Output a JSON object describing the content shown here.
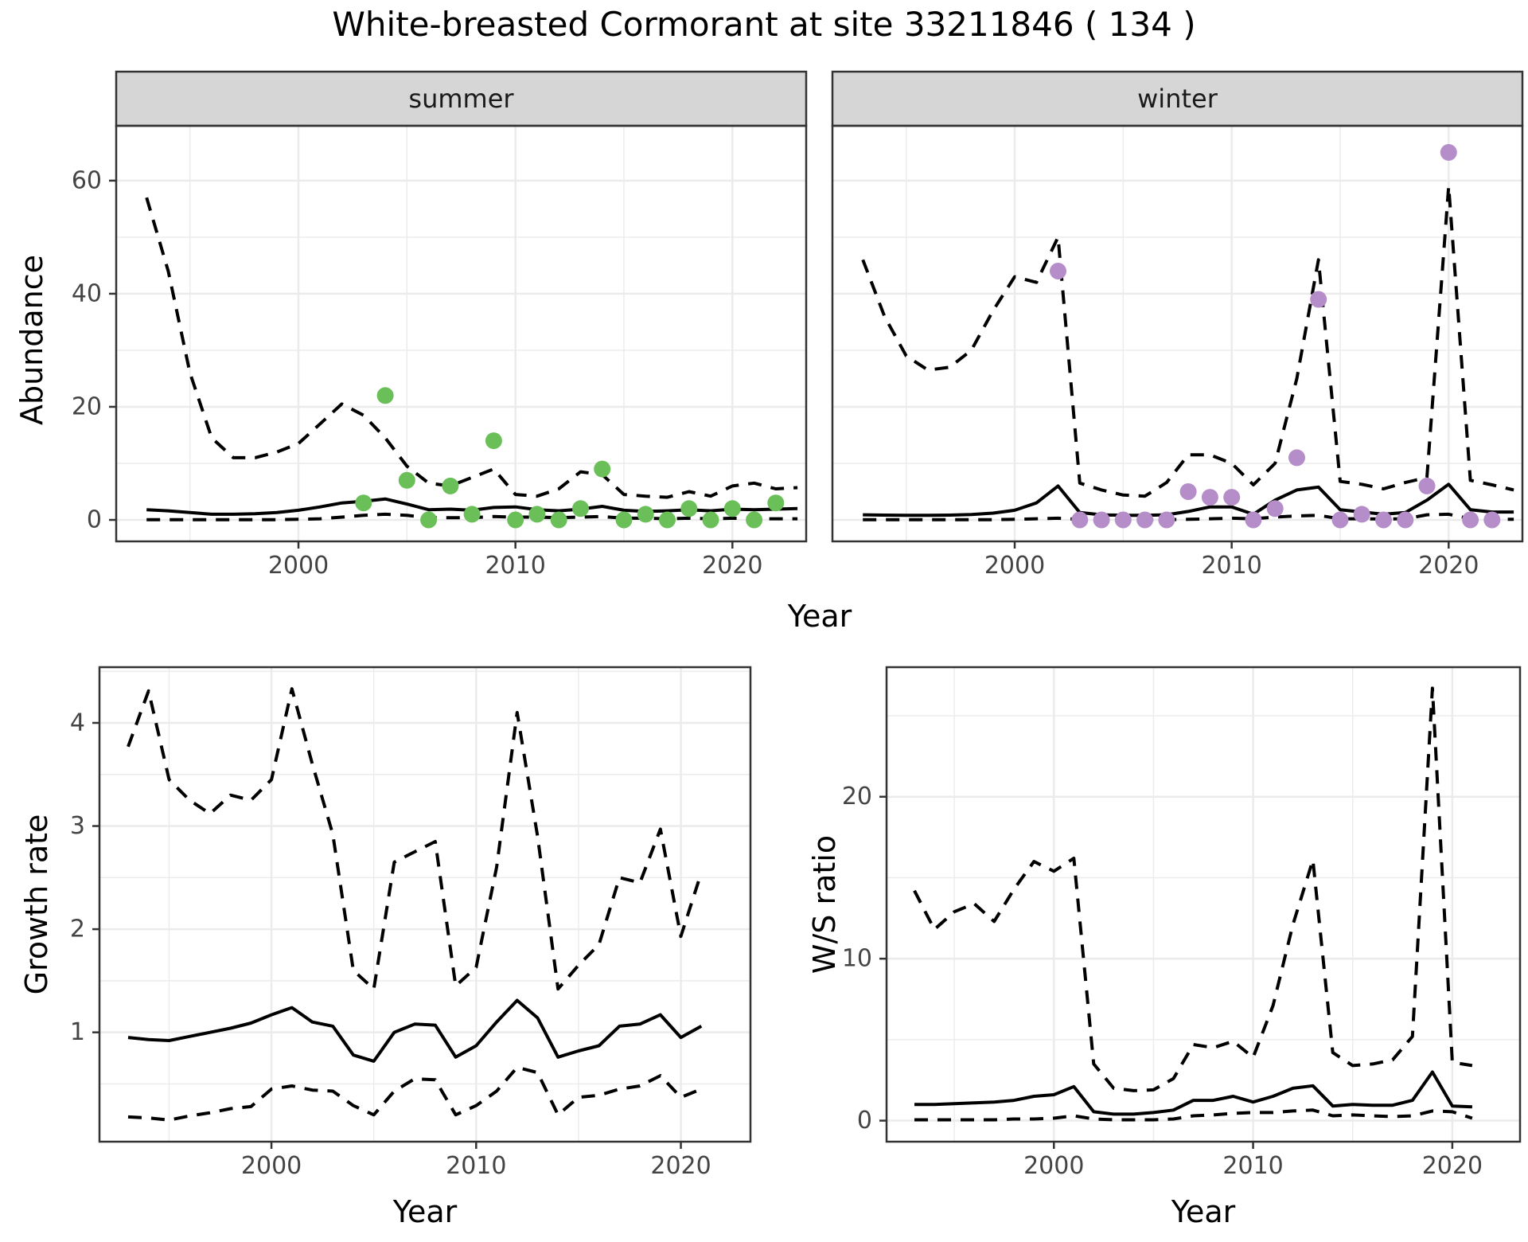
{
  "title": "White-breasted Cormorant at site 33211846 ( 134 )",
  "axes": {
    "abundance_label": "Abundance",
    "growth_label": "Growth rate",
    "ws_label": "W/S ratio",
    "year_label_top": "Year",
    "year_label_growth": "Year",
    "year_label_ws": "Year"
  },
  "style": {
    "background": "#ffffff",
    "strip_fill": "#d6d6d6",
    "strip_text_color": "#1a1a1a",
    "panel_border": "#333333",
    "gridline": "#ebebeb",
    "tick_label_color": "#444444",
    "line_color": "#000000",
    "summer_point_color": "#6abf59",
    "winter_point_color": "#b58dc9"
  },
  "chart_data": [
    {
      "id": "abundance_summer",
      "type": "line",
      "facet": "summer",
      "title": "",
      "xlabel": "Year",
      "ylabel": "Abundance",
      "xlim": [
        1991.6,
        2023.4
      ],
      "ylim": [
        -3.8,
        69.7
      ],
      "x_ticks": [
        2000,
        2010,
        2020
      ],
      "x_minor": [
        1995,
        2005,
        2015
      ],
      "y_ticks": [
        0,
        20,
        40,
        60
      ],
      "y_minor": [
        10,
        30,
        50
      ],
      "show_y_labels": true,
      "grid": true,
      "x": [
        1993,
        1994,
        1995,
        1996,
        1997,
        1998,
        1999,
        2000,
        2001,
        2002,
        2003,
        2004,
        2005,
        2006,
        2007,
        2008,
        2009,
        2010,
        2011,
        2012,
        2013,
        2014,
        2015,
        2016,
        2017,
        2018,
        2019,
        2020,
        2021,
        2022,
        2023
      ],
      "series": [
        {
          "name": "upper_95ci",
          "style": "dashed",
          "values": [
            57,
            44,
            26,
            14.5,
            11,
            11,
            12,
            13.5,
            17,
            20.5,
            18.5,
            14.5,
            9.5,
            6.5,
            6,
            7.5,
            9,
            4.5,
            4.2,
            5.5,
            8.5,
            8,
            4.5,
            4.2,
            4,
            5,
            4.2,
            6,
            6.5,
            5.5,
            5.7
          ]
        },
        {
          "name": "fit",
          "style": "solid",
          "values": [
            1.8,
            1.6,
            1.3,
            1.0,
            1.0,
            1.1,
            1.3,
            1.7,
            2.3,
            3.0,
            3.3,
            3.7,
            2.8,
            1.8,
            1.9,
            1.7,
            2.2,
            2.3,
            1.8,
            1.6,
            1.9,
            2.4,
            1.7,
            1.5,
            1.6,
            1.8,
            1.6,
            1.9,
            1.8,
            1.9,
            2.0
          ]
        },
        {
          "name": "lower_95ci",
          "style": "dashed",
          "values": [
            0.05,
            0.05,
            0.05,
            0.05,
            0.05,
            0.05,
            0.05,
            0.1,
            0.2,
            0.5,
            0.8,
            1.0,
            0.8,
            0.4,
            0.4,
            0.4,
            0.6,
            0.5,
            0.5,
            0.4,
            0.5,
            0.6,
            0.3,
            0.3,
            0.2,
            0.3,
            0.2,
            0.3,
            0.2,
            0.2,
            0.2
          ]
        }
      ],
      "points": {
        "name": "observed_counts",
        "color": "#6abf59",
        "x": [
          2003,
          2004,
          2005,
          2006,
          2007,
          2008,
          2009,
          2010,
          2011,
          2012,
          2013,
          2014,
          2015,
          2016,
          2017,
          2018,
          2019,
          2020,
          2021,
          2022
        ],
        "values": [
          3,
          22,
          7,
          0,
          6,
          1,
          14,
          0,
          1,
          0,
          2,
          9,
          0,
          1,
          0,
          2,
          0,
          2,
          0,
          3
        ]
      }
    },
    {
      "id": "abundance_winter",
      "type": "line",
      "facet": "winter",
      "title": "",
      "xlabel": "Year",
      "ylabel": "Abundance",
      "xlim": [
        1991.6,
        2023.4
      ],
      "ylim": [
        -3.8,
        69.7
      ],
      "x_ticks": [
        2000,
        2010,
        2020
      ],
      "x_minor": [
        1995,
        2005,
        2015
      ],
      "y_ticks": [
        0,
        20,
        40,
        60
      ],
      "y_minor": [
        10,
        30,
        50
      ],
      "show_y_labels": false,
      "grid": true,
      "x": [
        1993,
        1994,
        1995,
        1996,
        1997,
        1998,
        1999,
        2000,
        2001,
        2002,
        2003,
        2004,
        2005,
        2006,
        2007,
        2008,
        2009,
        2010,
        2011,
        2012,
        2013,
        2014,
        2015,
        2016,
        2017,
        2018,
        2019,
        2020,
        2021,
        2022,
        2023
      ],
      "series": [
        {
          "name": "upper_95ci",
          "style": "dashed",
          "values": [
            46,
            36,
            29,
            26.5,
            27,
            30,
            37,
            43,
            42,
            50,
            6.5,
            5.3,
            4.4,
            4.2,
            6.6,
            11.5,
            11.5,
            10,
            6.2,
            10,
            25,
            46,
            6.8,
            6.3,
            5.5,
            6.6,
            7.5,
            59,
            7,
            6.2,
            5.3
          ]
        },
        {
          "name": "fit",
          "style": "solid",
          "values": [
            0.9,
            0.85,
            0.8,
            0.8,
            0.85,
            0.95,
            1.2,
            1.7,
            3.0,
            6.0,
            1.3,
            0.9,
            0.8,
            0.8,
            0.9,
            1.5,
            2.3,
            2.3,
            1.0,
            3.5,
            5.3,
            5.8,
            1.8,
            1.4,
            1.0,
            1.3,
            3.5,
            6.3,
            1.8,
            1.4,
            1.4
          ]
        },
        {
          "name": "lower_95ci",
          "style": "dashed",
          "values": [
            0.05,
            0.05,
            0.05,
            0.05,
            0.05,
            0.05,
            0.05,
            0.1,
            0.2,
            0.3,
            0.1,
            0.05,
            0.05,
            0.05,
            0.05,
            0.1,
            0.2,
            0.3,
            0.2,
            0.5,
            0.7,
            0.8,
            0.2,
            0.2,
            0.15,
            0.2,
            0.9,
            1.0,
            0.2,
            0.1,
            0.1
          ]
        }
      ],
      "points": {
        "name": "observed_counts",
        "color": "#b58dc9",
        "x": [
          2002,
          2003,
          2004,
          2005,
          2006,
          2007,
          2008,
          2009,
          2010,
          2011,
          2012,
          2013,
          2014,
          2015,
          2016,
          2017,
          2018,
          2019,
          2020,
          2021,
          2022
        ],
        "values": [
          44,
          0,
          0,
          0,
          0,
          0,
          5,
          4,
          4,
          0,
          2,
          11,
          39,
          0,
          1,
          0,
          0,
          6,
          65,
          0,
          0
        ]
      }
    },
    {
      "id": "growth_rate",
      "type": "line",
      "facet": null,
      "title": "",
      "xlabel": "Year",
      "ylabel": "Growth rate",
      "xlim": [
        1991.6,
        2023.4
      ],
      "ylim": [
        -0.06,
        4.54
      ],
      "x_ticks": [
        2000,
        2010,
        2020
      ],
      "x_minor": [
        1995,
        2005,
        2015
      ],
      "y_ticks": [
        1,
        2,
        3,
        4
      ],
      "y_minor": [
        0.5,
        1.5,
        2.5,
        3.5,
        4.5
      ],
      "show_y_labels": true,
      "grid": true,
      "x": [
        1993,
        1994,
        1995,
        1996,
        1997,
        1998,
        1999,
        2000,
        2001,
        2002,
        2003,
        2004,
        2005,
        2006,
        2007,
        2008,
        2009,
        2010,
        2011,
        2012,
        2013,
        2014,
        2015,
        2016,
        2017,
        2018,
        2019,
        2020,
        2021
      ],
      "series": [
        {
          "name": "upper_95ci",
          "style": "dashed",
          "values": [
            3.77,
            4.31,
            3.45,
            3.25,
            3.12,
            3.3,
            3.25,
            3.45,
            4.33,
            3.6,
            2.92,
            1.6,
            1.42,
            2.65,
            2.75,
            2.85,
            1.45,
            1.63,
            2.6,
            4.1,
            2.9,
            1.42,
            1.65,
            1.85,
            2.5,
            2.45,
            2.97,
            1.93,
            2.55
          ]
        },
        {
          "name": "fit",
          "style": "solid",
          "values": [
            0.95,
            0.93,
            0.92,
            0.96,
            1.0,
            1.04,
            1.09,
            1.17,
            1.24,
            1.1,
            1.06,
            0.78,
            0.72,
            1.0,
            1.08,
            1.07,
            0.76,
            0.87,
            1.1,
            1.31,
            1.14,
            0.76,
            0.82,
            0.87,
            1.06,
            1.08,
            1.17,
            0.95,
            1.06
          ]
        },
        {
          "name": "lower_95ci",
          "style": "dashed",
          "values": [
            0.18,
            0.17,
            0.15,
            0.19,
            0.22,
            0.26,
            0.28,
            0.45,
            0.48,
            0.44,
            0.43,
            0.29,
            0.2,
            0.43,
            0.55,
            0.54,
            0.2,
            0.29,
            0.43,
            0.66,
            0.61,
            0.2,
            0.37,
            0.39,
            0.45,
            0.48,
            0.58,
            0.37,
            0.45
          ]
        }
      ],
      "points": null
    },
    {
      "id": "ws_ratio",
      "type": "line",
      "facet": null,
      "title": "",
      "xlabel": "Year",
      "ylabel": "W/S ratio",
      "xlim": [
        1991.6,
        2023.4
      ],
      "ylim": [
        -1.3,
        28.0
      ],
      "x_ticks": [
        2000,
        2010,
        2020
      ],
      "x_minor": [
        1995,
        2005,
        2015
      ],
      "y_ticks": [
        0,
        10,
        20
      ],
      "y_minor": [
        5,
        15,
        25
      ],
      "show_y_labels": true,
      "grid": true,
      "x": [
        1993,
        1994,
        1995,
        1996,
        1997,
        1998,
        1999,
        2000,
        2001,
        2002,
        2003,
        2004,
        2005,
        2006,
        2007,
        2008,
        2009,
        2010,
        2011,
        2012,
        2013,
        2014,
        2015,
        2016,
        2017,
        2018,
        2019,
        2020,
        2021
      ],
      "series": [
        {
          "name": "upper_95ci",
          "style": "dashed",
          "values": [
            14.2,
            11.8,
            12.9,
            13.4,
            12.3,
            14.3,
            16,
            15.4,
            16.2,
            3.5,
            2,
            1.85,
            1.9,
            2.6,
            4.7,
            4.5,
            4.9,
            3.9,
            7.1,
            12.1,
            16.1,
            4.2,
            3.4,
            3.5,
            3.75,
            5.2,
            26.7,
            3.6,
            3.4
          ]
        },
        {
          "name": "fit",
          "style": "solid",
          "values": [
            1,
            1,
            1.05,
            1.1,
            1.15,
            1.25,
            1.5,
            1.6,
            2.1,
            0.55,
            0.4,
            0.4,
            0.5,
            0.65,
            1.25,
            1.25,
            1.5,
            1.15,
            1.5,
            2,
            2.15,
            0.9,
            1,
            0.95,
            0.95,
            1.25,
            3,
            0.9,
            0.85
          ]
        },
        {
          "name": "lower_95ci",
          "style": "dashed",
          "values": [
            0.05,
            0.05,
            0.05,
            0.05,
            0.05,
            0.1,
            0.1,
            0.15,
            0.3,
            0.1,
            0.05,
            0.05,
            0.05,
            0.1,
            0.3,
            0.35,
            0.45,
            0.5,
            0.5,
            0.6,
            0.65,
            0.3,
            0.35,
            0.3,
            0.25,
            0.3,
            0.6,
            0.55,
            0.15
          ]
        }
      ],
      "points": null
    }
  ]
}
